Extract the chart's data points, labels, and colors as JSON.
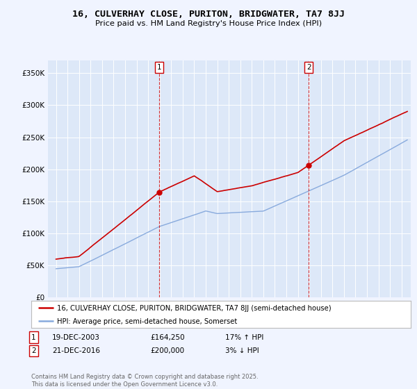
{
  "title": "16, CULVERHAY CLOSE, PURITON, BRIDGWATER, TA7 8JJ",
  "subtitle": "Price paid vs. HM Land Registry's House Price Index (HPI)",
  "legend_line1": "16, CULVERHAY CLOSE, PURITON, BRIDGWATER, TA7 8JJ (semi-detached house)",
  "legend_line2": "HPI: Average price, semi-detached house, Somerset",
  "sale1_label": "1",
  "sale1_date": "19-DEC-2003",
  "sale1_price": "£164,250",
  "sale1_hpi": "17% ↑ HPI",
  "sale2_label": "2",
  "sale2_date": "21-DEC-2016",
  "sale2_price": "£200,000",
  "sale2_hpi": "3% ↓ HPI",
  "footer": "Contains HM Land Registry data © Crown copyright and database right 2025.\nThis data is licensed under the Open Government Licence v3.0.",
  "ylim": [
    0,
    370000
  ],
  "sale1_year": 2003.97,
  "sale1_value": 164250,
  "sale2_year": 2016.97,
  "sale2_value": 200000,
  "sale_color": "#cc0000",
  "hpi_color": "#88aadd",
  "background_color": "#f0f4ff",
  "plot_bg": "#dde8f8"
}
